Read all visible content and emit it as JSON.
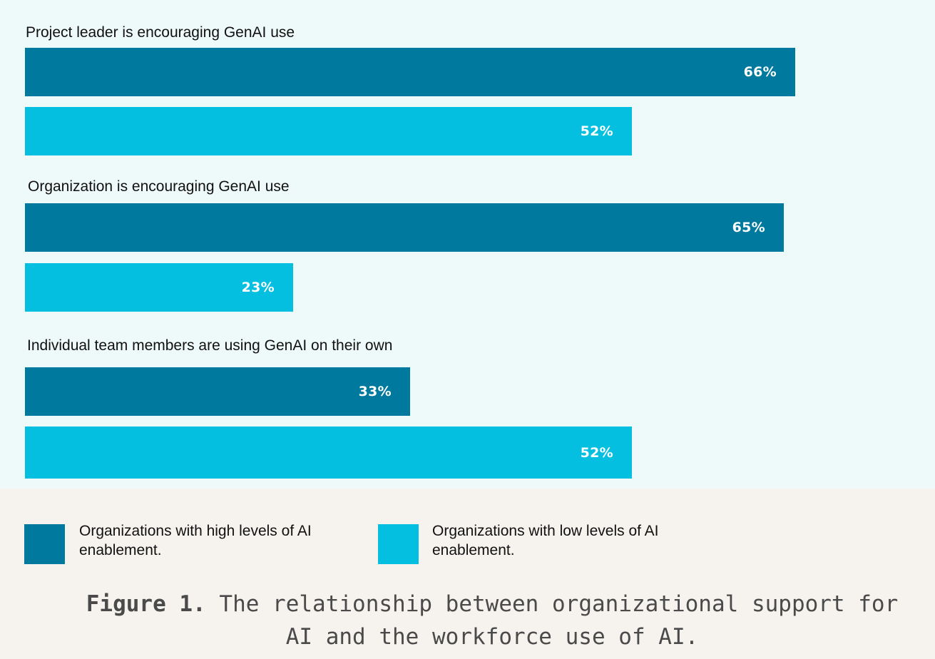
{
  "chart_data": {
    "type": "bar",
    "orientation": "horizontal",
    "categories": [
      "Project leader is encouraging GenAI use",
      "Organization is encouraging GenAI use",
      "Individual team members are using GenAI on their own"
    ],
    "series": [
      {
        "name": "Organizations with high levels of AI enablement.",
        "color": "#00799e",
        "values": [
          66,
          65,
          33
        ],
        "labels": [
          "66%",
          "65%",
          "33%"
        ]
      },
      {
        "name": "Organizations with low levels of AI enablement.",
        "color": "#04bfe0",
        "values": [
          52,
          23,
          52
        ],
        "labels": [
          "52%",
          "23%",
          "52%"
        ]
      }
    ],
    "unit": "%",
    "xlim": [
      0,
      100
    ],
    "grid": false,
    "legend_position": "bottom"
  },
  "caption": {
    "prefix": "Figure 1.",
    "text": "The relationship between organizational support for AI and the workforce use of AI."
  },
  "colors": {
    "chart_background": "#eefaf9",
    "page_background": "#f6f3ef"
  }
}
